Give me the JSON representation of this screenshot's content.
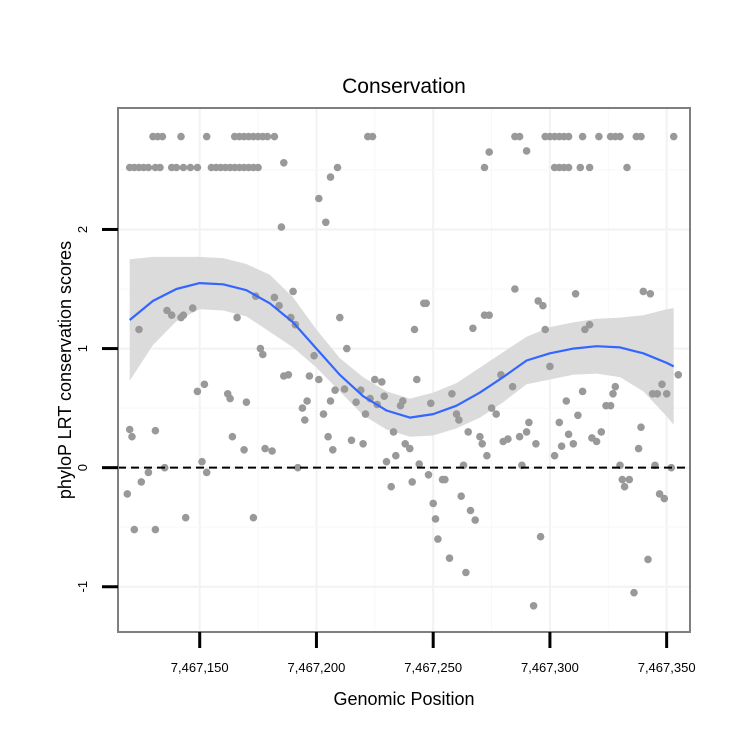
{
  "chart_data": {
    "type": "scatter",
    "title": "Conservation",
    "xlabel": "Genomic Position",
    "ylabel": "phyloP LRT conservation scores",
    "xlim": [
      7467115,
      7467360
    ],
    "ylim": [
      -1.38,
      3.02
    ],
    "x_ticks": [
      7467150,
      7467200,
      7467250,
      7467300,
      7467350
    ],
    "x_tick_labels": [
      "7,467,150",
      "7,467,200",
      "7,467,250",
      "7,467,300",
      "7,467,350"
    ],
    "y_ticks": [
      -1,
      0,
      1,
      2
    ],
    "y_tick_labels": [
      "-1",
      "0",
      "1",
      "2"
    ],
    "grid": true,
    "reference_line": {
      "y": 0,
      "style": "dashed"
    },
    "colors": {
      "points": "#999999",
      "smooth": "#3366ff",
      "ribbon": "#d9d9d9",
      "border": "#7f7f7f",
      "grid": "#f2f2f2"
    },
    "points": [
      [
        7467130,
        2.78
      ],
      [
        7467132,
        2.78
      ],
      [
        7467134,
        2.78
      ],
      [
        7467142,
        2.78
      ],
      [
        7467153,
        2.78
      ],
      [
        7467165,
        2.78
      ],
      [
        7467167,
        2.78
      ],
      [
        7467169,
        2.78
      ],
      [
        7467171,
        2.78
      ],
      [
        7467173,
        2.78
      ],
      [
        7467175,
        2.78
      ],
      [
        7467177,
        2.78
      ],
      [
        7467179,
        2.78
      ],
      [
        7467182,
        2.78
      ],
      [
        7467222,
        2.78
      ],
      [
        7467224,
        2.78
      ],
      [
        7467285,
        2.78
      ],
      [
        7467287,
        2.78
      ],
      [
        7467298,
        2.78
      ],
      [
        7467300,
        2.78
      ],
      [
        7467302,
        2.78
      ],
      [
        7467304,
        2.78
      ],
      [
        7467306,
        2.78
      ],
      [
        7467308,
        2.78
      ],
      [
        7467314,
        2.78
      ],
      [
        7467321,
        2.78
      ],
      [
        7467326,
        2.78
      ],
      [
        7467328,
        2.78
      ],
      [
        7467330,
        2.78
      ],
      [
        7467337,
        2.78
      ],
      [
        7467339,
        2.78
      ],
      [
        7467353,
        2.78
      ],
      [
        7467120,
        2.52
      ],
      [
        7467122,
        2.52
      ],
      [
        7467124,
        2.52
      ],
      [
        7467126,
        2.52
      ],
      [
        7467128,
        2.52
      ],
      [
        7467131,
        2.52
      ],
      [
        7467133,
        2.52
      ],
      [
        7467138,
        2.52
      ],
      [
        7467140,
        2.52
      ],
      [
        7467143,
        2.52
      ],
      [
        7467146,
        2.52
      ],
      [
        7467149,
        2.52
      ],
      [
        7467155,
        2.52
      ],
      [
        7467157,
        2.52
      ],
      [
        7467159,
        2.52
      ],
      [
        7467161,
        2.52
      ],
      [
        7467163,
        2.52
      ],
      [
        7467165,
        2.52
      ],
      [
        7467167,
        2.52
      ],
      [
        7467169,
        2.52
      ],
      [
        7467171,
        2.52
      ],
      [
        7467173,
        2.52
      ],
      [
        7467175,
        2.52
      ],
      [
        7467272,
        2.52
      ],
      [
        7467302,
        2.52
      ],
      [
        7467304,
        2.52
      ],
      [
        7467306,
        2.52
      ],
      [
        7467308,
        2.52
      ],
      [
        7467313,
        2.52
      ],
      [
        7467317,
        2.52
      ],
      [
        7467333,
        2.52
      ],
      [
        7467186,
        2.56
      ],
      [
        7467206,
        2.44
      ],
      [
        7467209,
        2.52
      ],
      [
        7467201,
        2.26
      ],
      [
        7467204,
        2.06
      ],
      [
        7467185,
        2.02
      ],
      [
        7467274,
        2.65
      ],
      [
        7467290,
        2.66
      ],
      [
        7467120,
        0.32
      ],
      [
        7467121,
        0.26
      ],
      [
        7467124,
        1.16
      ],
      [
        7467125,
        -0.12
      ],
      [
        7467128,
        -0.04
      ],
      [
        7467122,
        -0.52
      ],
      [
        7467131,
        -0.52
      ],
      [
        7467119,
        -0.22
      ],
      [
        7467131,
        0.31
      ],
      [
        7467135,
        0.0
      ],
      [
        7467136,
        1.32
      ],
      [
        7467138,
        1.28
      ],
      [
        7467142,
        1.26
      ],
      [
        7467143,
        1.28
      ],
      [
        7467144,
        -0.42
      ],
      [
        7467147,
        1.34
      ],
      [
        7467149,
        0.64
      ],
      [
        7467151,
        0.05
      ],
      [
        7467152,
        0.7
      ],
      [
        7467153,
        -0.04
      ],
      [
        7467162,
        0.62
      ],
      [
        7467163,
        0.58
      ],
      [
        7467164,
        0.26
      ],
      [
        7467166,
        1.26
      ],
      [
        7467169,
        0.15
      ],
      [
        7467170,
        0.55
      ],
      [
        7467173,
        -0.42
      ],
      [
        7467174,
        1.44
      ],
      [
        7467176,
        1.0
      ],
      [
        7467177,
        0.95
      ],
      [
        7467178,
        0.16
      ],
      [
        7467181,
        0.14
      ],
      [
        7467182,
        1.43
      ],
      [
        7467184,
        1.36
      ],
      [
        7467186,
        0.77
      ],
      [
        7467188,
        0.78
      ],
      [
        7467189,
        1.26
      ],
      [
        7467190,
        1.48
      ],
      [
        7467191,
        1.2
      ],
      [
        7467192,
        0.0
      ],
      [
        7467194,
        0.5
      ],
      [
        7467195,
        0.4
      ],
      [
        7467196,
        0.56
      ],
      [
        7467197,
        0.77
      ],
      [
        7467199,
        0.94
      ],
      [
        7467201,
        0.74
      ],
      [
        7467203,
        0.45
      ],
      [
        7467205,
        0.26
      ],
      [
        7467206,
        0.56
      ],
      [
        7467207,
        0.15
      ],
      [
        7467208,
        0.65
      ],
      [
        7467210,
        1.26
      ],
      [
        7467212,
        0.66
      ],
      [
        7467213,
        1.0
      ],
      [
        7467215,
        0.23
      ],
      [
        7467217,
        0.55
      ],
      [
        7467219,
        0.65
      ],
      [
        7467220,
        0.2
      ],
      [
        7467221,
        0.45
      ],
      [
        7467223,
        0.58
      ],
      [
        7467225,
        0.74
      ],
      [
        7467226,
        0.53
      ],
      [
        7467228,
        0.72
      ],
      [
        7467229,
        0.6
      ],
      [
        7467230,
        0.05
      ],
      [
        7467232,
        -0.16
      ],
      [
        7467233,
        0.3
      ],
      [
        7467234,
        0.1
      ],
      [
        7467236,
        0.52
      ],
      [
        7467237,
        0.56
      ],
      [
        7467238,
        0.2
      ],
      [
        7467240,
        0.16
      ],
      [
        7467241,
        -0.12
      ],
      [
        7467242,
        1.16
      ],
      [
        7467243,
        0.74
      ],
      [
        7467244,
        0.03
      ],
      [
        7467246,
        1.38
      ],
      [
        7467247,
        1.38
      ],
      [
        7467248,
        -0.06
      ],
      [
        7467249,
        0.54
      ],
      [
        7467250,
        -0.3
      ],
      [
        7467251,
        -0.43
      ],
      [
        7467252,
        -0.6
      ],
      [
        7467254,
        -0.1
      ],
      [
        7467255,
        -0.1
      ],
      [
        7467257,
        -0.76
      ],
      [
        7467258,
        0.62
      ],
      [
        7467260,
        0.45
      ],
      [
        7467261,
        0.4
      ],
      [
        7467262,
        -0.24
      ],
      [
        7467263,
        0.02
      ],
      [
        7467264,
        -0.88
      ],
      [
        7467265,
        0.3
      ],
      [
        7467266,
        -0.36
      ],
      [
        7467267,
        1.17
      ],
      [
        7467268,
        -0.44
      ],
      [
        7467270,
        0.26
      ],
      [
        7467271,
        0.2
      ],
      [
        7467272,
        1.28
      ],
      [
        7467273,
        0.1
      ],
      [
        7467274,
        1.28
      ],
      [
        7467275,
        0.5
      ],
      [
        7467277,
        0.45
      ],
      [
        7467279,
        0.78
      ],
      [
        7467280,
        0.22
      ],
      [
        7467282,
        0.24
      ],
      [
        7467284,
        0.68
      ],
      [
        7467285,
        1.5
      ],
      [
        7467287,
        0.26
      ],
      [
        7467288,
        0.02
      ],
      [
        7467290,
        0.3
      ],
      [
        7467291,
        0.38
      ],
      [
        7467293,
        -1.16
      ],
      [
        7467294,
        0.2
      ],
      [
        7467295,
        1.4
      ],
      [
        7467296,
        -0.58
      ],
      [
        7467297,
        1.36
      ],
      [
        7467298,
        1.16
      ],
      [
        7467300,
        0.85
      ],
      [
        7467302,
        0.1
      ],
      [
        7467304,
        0.38
      ],
      [
        7467305,
        0.18
      ],
      [
        7467307,
        0.56
      ],
      [
        7467308,
        0.28
      ],
      [
        7467310,
        0.2
      ],
      [
        7467311,
        1.46
      ],
      [
        7467312,
        0.44
      ],
      [
        7467314,
        0.64
      ],
      [
        7467315,
        1.16
      ],
      [
        7467317,
        1.2
      ],
      [
        7467318,
        0.25
      ],
      [
        7467320,
        0.22
      ],
      [
        7467322,
        0.3
      ],
      [
        7467324,
        0.52
      ],
      [
        7467326,
        0.52
      ],
      [
        7467327,
        0.62
      ],
      [
        7467328,
        0.68
      ],
      [
        7467330,
        0.02
      ],
      [
        7467331,
        -0.1
      ],
      [
        7467332,
        -0.16
      ],
      [
        7467334,
        -0.1
      ],
      [
        7467336,
        -1.05
      ],
      [
        7467338,
        0.16
      ],
      [
        7467339,
        0.34
      ],
      [
        7467340,
        1.48
      ],
      [
        7467342,
        -0.77
      ],
      [
        7467343,
        1.46
      ],
      [
        7467344,
        0.62
      ],
      [
        7467345,
        0.02
      ],
      [
        7467346,
        0.62
      ],
      [
        7467347,
        -0.22
      ],
      [
        7467348,
        0.7
      ],
      [
        7467349,
        -0.26
      ],
      [
        7467350,
        0.62
      ],
      [
        7467352,
        0.0
      ],
      [
        7467355,
        0.78
      ]
    ],
    "smooth": [
      [
        7467120,
        1.24
      ],
      [
        7467130,
        1.4
      ],
      [
        7467140,
        1.5
      ],
      [
        7467150,
        1.55
      ],
      [
        7467160,
        1.54
      ],
      [
        7467170,
        1.49
      ],
      [
        7467180,
        1.38
      ],
      [
        7467190,
        1.22
      ],
      [
        7467200,
        1.0
      ],
      [
        7467210,
        0.78
      ],
      [
        7467220,
        0.6
      ],
      [
        7467230,
        0.48
      ],
      [
        7467240,
        0.42
      ],
      [
        7467250,
        0.45
      ],
      [
        7467260,
        0.52
      ],
      [
        7467270,
        0.63
      ],
      [
        7467280,
        0.76
      ],
      [
        7467290,
        0.9
      ],
      [
        7467300,
        0.96
      ],
      [
        7467310,
        1.0
      ],
      [
        7467320,
        1.02
      ],
      [
        7467330,
        1.01
      ],
      [
        7467340,
        0.96
      ],
      [
        7467350,
        0.88
      ],
      [
        7467353,
        0.85
      ]
    ],
    "ribbon_upper": [
      [
        7467120,
        1.75
      ],
      [
        7467130,
        1.77
      ],
      [
        7467140,
        1.77
      ],
      [
        7467150,
        1.77
      ],
      [
        7467160,
        1.76
      ],
      [
        7467170,
        1.71
      ],
      [
        7467180,
        1.62
      ],
      [
        7467190,
        1.43
      ],
      [
        7467200,
        1.16
      ],
      [
        7467210,
        0.92
      ],
      [
        7467220,
        0.76
      ],
      [
        7467230,
        0.64
      ],
      [
        7467240,
        0.58
      ],
      [
        7467250,
        0.63
      ],
      [
        7467260,
        0.71
      ],
      [
        7467270,
        0.84
      ],
      [
        7467280,
        0.97
      ],
      [
        7467290,
        1.1
      ],
      [
        7467300,
        1.18
      ],
      [
        7467310,
        1.22
      ],
      [
        7467320,
        1.25
      ],
      [
        7467330,
        1.26
      ],
      [
        7467340,
        1.28
      ],
      [
        7467350,
        1.33
      ],
      [
        7467353,
        1.34
      ]
    ],
    "ribbon_lower": [
      [
        7467120,
        0.73
      ],
      [
        7467130,
        1.03
      ],
      [
        7467140,
        1.23
      ],
      [
        7467150,
        1.33
      ],
      [
        7467160,
        1.32
      ],
      [
        7467170,
        1.27
      ],
      [
        7467180,
        1.14
      ],
      [
        7467190,
        1.01
      ],
      [
        7467200,
        0.84
      ],
      [
        7467210,
        0.64
      ],
      [
        7467220,
        0.44
      ],
      [
        7467230,
        0.32
      ],
      [
        7467240,
        0.26
      ],
      [
        7467250,
        0.27
      ],
      [
        7467260,
        0.33
      ],
      [
        7467270,
        0.42
      ],
      [
        7467280,
        0.55
      ],
      [
        7467290,
        0.7
      ],
      [
        7467300,
        0.74
      ],
      [
        7467310,
        0.78
      ],
      [
        7467320,
        0.79
      ],
      [
        7467330,
        0.76
      ],
      [
        7467340,
        0.64
      ],
      [
        7467350,
        0.43
      ],
      [
        7467353,
        0.36
      ]
    ]
  }
}
